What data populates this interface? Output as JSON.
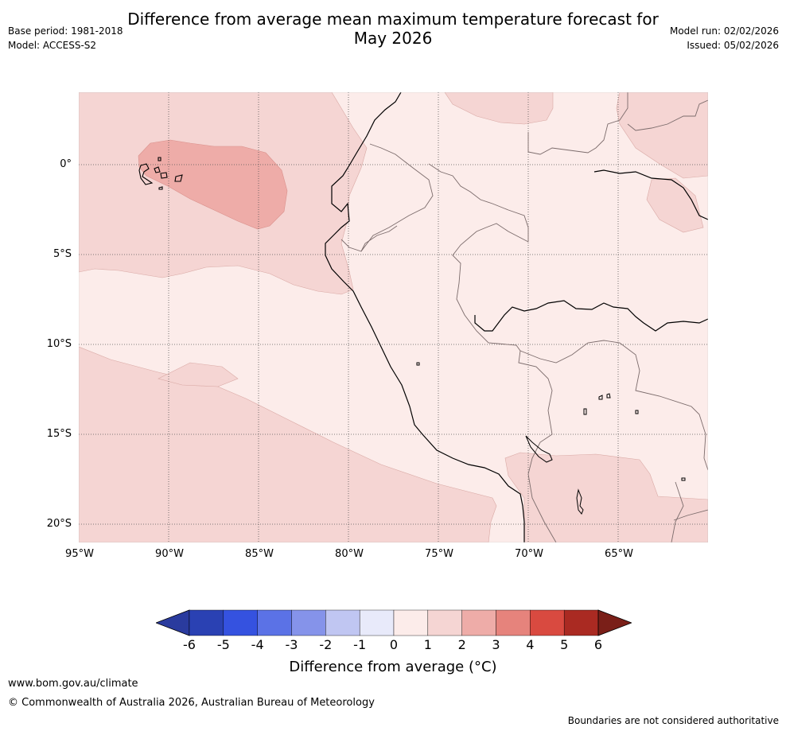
{
  "title_line1": "Difference from average mean maximum temperature forecast for",
  "title_line2": "May 2026",
  "meta": {
    "base_period": "Base period: 1981-2018",
    "model": "Model: ACCESS-S2",
    "model_run": "Model run: 02/02/2026",
    "issued": "Issued: 05/02/2026"
  },
  "map": {
    "lat_labels": [
      "0°",
      "5°S",
      "10°S",
      "15°S",
      "20°S"
    ],
    "lon_labels": [
      "95°W",
      "90°W",
      "85°W",
      "80°W",
      "75°W",
      "70°W",
      "65°W"
    ]
  },
  "colorbar": {
    "ticks": [
      "-6",
      "-5",
      "-4",
      "-3",
      "-2",
      "-1",
      "0",
      "1",
      "2",
      "3",
      "4",
      "5",
      "6"
    ],
    "colors": [
      "#2a3b9e",
      "#2a41b3",
      "#3552e0",
      "#5b72e6",
      "#8593ea",
      "#c0c6f2",
      "#e8eafa",
      "#fcecea",
      "#f5d5d3",
      "#eeaca8",
      "#e6837c",
      "#d94a40",
      "#aa2a22",
      "#7a1f18"
    ],
    "label": "Difference from average ($^\\circ$C)",
    "label_display": "Difference from average (°C)"
  },
  "footer": {
    "url": "www.bom.gov.au/climate",
    "copyright": "© Commonwealth of Australia 2026, Australian Bureau of Meteorology",
    "disclaimer": "Boundaries are not considered authoritative"
  }
}
